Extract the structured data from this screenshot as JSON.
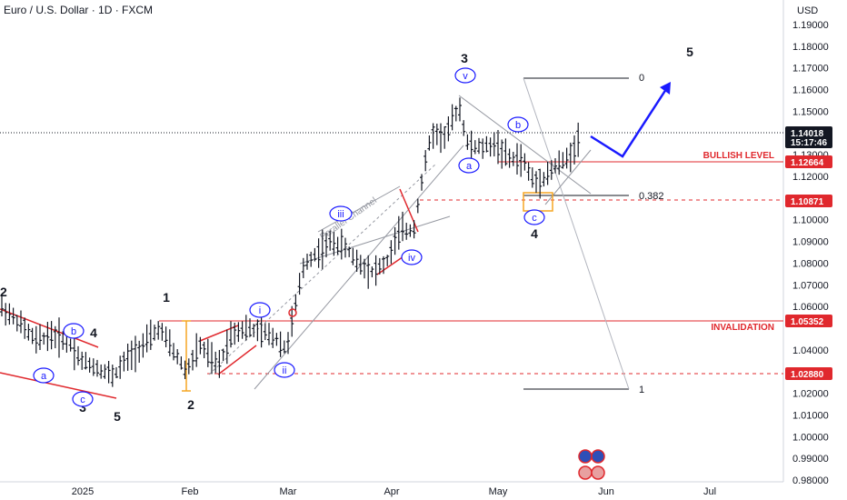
{
  "header": {
    "title": "Euro / U.S. Dollar · 1D · FXCM"
  },
  "chart_data": {
    "type": "candlestick",
    "currency_label": "USD",
    "y_ticks": [
      "1.19000",
      "1.18000",
      "1.17000",
      "1.16000",
      "1.15000",
      "1.13000",
      "1.12000",
      "1.10000",
      "1.09000",
      "1.08000",
      "1.07000",
      "1.06000",
      "1.04000",
      "1.02000",
      "1.01000",
      "1.00000",
      "0.99000",
      "0.98000"
    ],
    "ylim": [
      0.975,
      1.197
    ],
    "x_ticks": [
      "2025",
      "Feb",
      "Mar",
      "Apr",
      "May",
      "Jun",
      "Jul"
    ],
    "current_price": "1.14018",
    "countdown": "15:17:46",
    "levels": [
      {
        "price": 1.12664,
        "tag": "1.12664",
        "label": "BULLISH LEVEL",
        "style": "solid"
      },
      {
        "price": 1.10871,
        "tag": "1.10871",
        "label": "",
        "style": "dashed"
      },
      {
        "price": 1.05352,
        "tag": "1.05352",
        "label": "INVALIDATION",
        "style": "solid"
      },
      {
        "price": 1.0288,
        "tag": "1.02880",
        "label": "",
        "style": "dashed"
      }
    ],
    "fib_labels": [
      "0",
      "0.382",
      "1"
    ],
    "waves_major": [
      "1",
      "2",
      "3",
      "4",
      "5",
      "3",
      "4",
      "5"
    ],
    "waves_sub": [
      "a",
      "b",
      "c",
      "i",
      "ii",
      "iii",
      "iv",
      "v",
      "a",
      "b",
      "c"
    ],
    "channel_label": "Parallel Channel"
  }
}
